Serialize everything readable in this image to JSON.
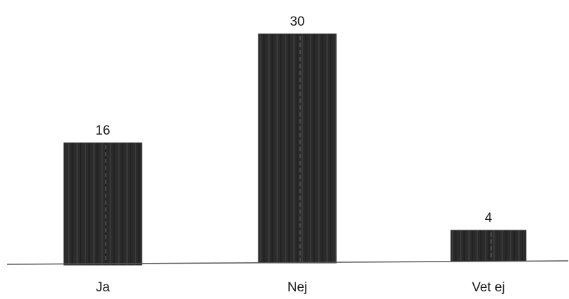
{
  "chart_data": {
    "type": "bar",
    "categories": [
      "Ja",
      "Nej",
      "Vet ej"
    ],
    "values": [
      16,
      30,
      4
    ],
    "data_labels": [
      "16",
      "30",
      "4"
    ],
    "ylim": [
      0,
      30
    ],
    "grid": false,
    "legend": "none",
    "bar_color": "#2b2b2b",
    "axis_color": "#555555",
    "text_color": "#1a1a1a"
  }
}
